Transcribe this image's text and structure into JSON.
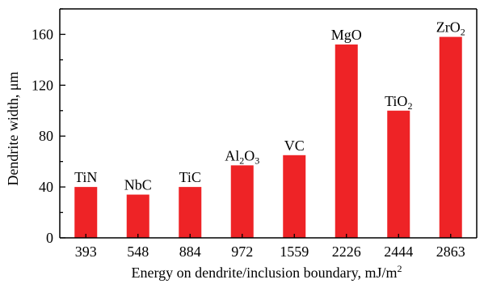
{
  "chart_data": {
    "type": "bar",
    "categories": [
      "393",
      "548",
      "884",
      "972",
      "1559",
      "2226",
      "2444",
      "2863"
    ],
    "values": [
      40,
      34,
      40,
      57,
      65,
      152,
      100,
      158
    ],
    "bar_labels": [
      {
        "main": "TiN"
      },
      {
        "main": "NbC"
      },
      {
        "main": "TiC"
      },
      {
        "main": "Al",
        "sub1": "2",
        "mid": "O",
        "sub2": "3"
      },
      {
        "main": "VC"
      },
      {
        "main": "MgO"
      },
      {
        "main": "TiO",
        "sub1": "2"
      },
      {
        "main": "ZrO",
        "sub1": "2"
      }
    ],
    "xlabel": {
      "main": "Energy on dendrite/inclusion boundary, mJ/m",
      "sup": "2"
    },
    "ylabel": "Dendrite width, μm",
    "ylim": [
      0,
      180
    ],
    "yticks": [
      0,
      40,
      80,
      120,
      160
    ],
    "grid": false,
    "bar_color": "#ee2326"
  }
}
